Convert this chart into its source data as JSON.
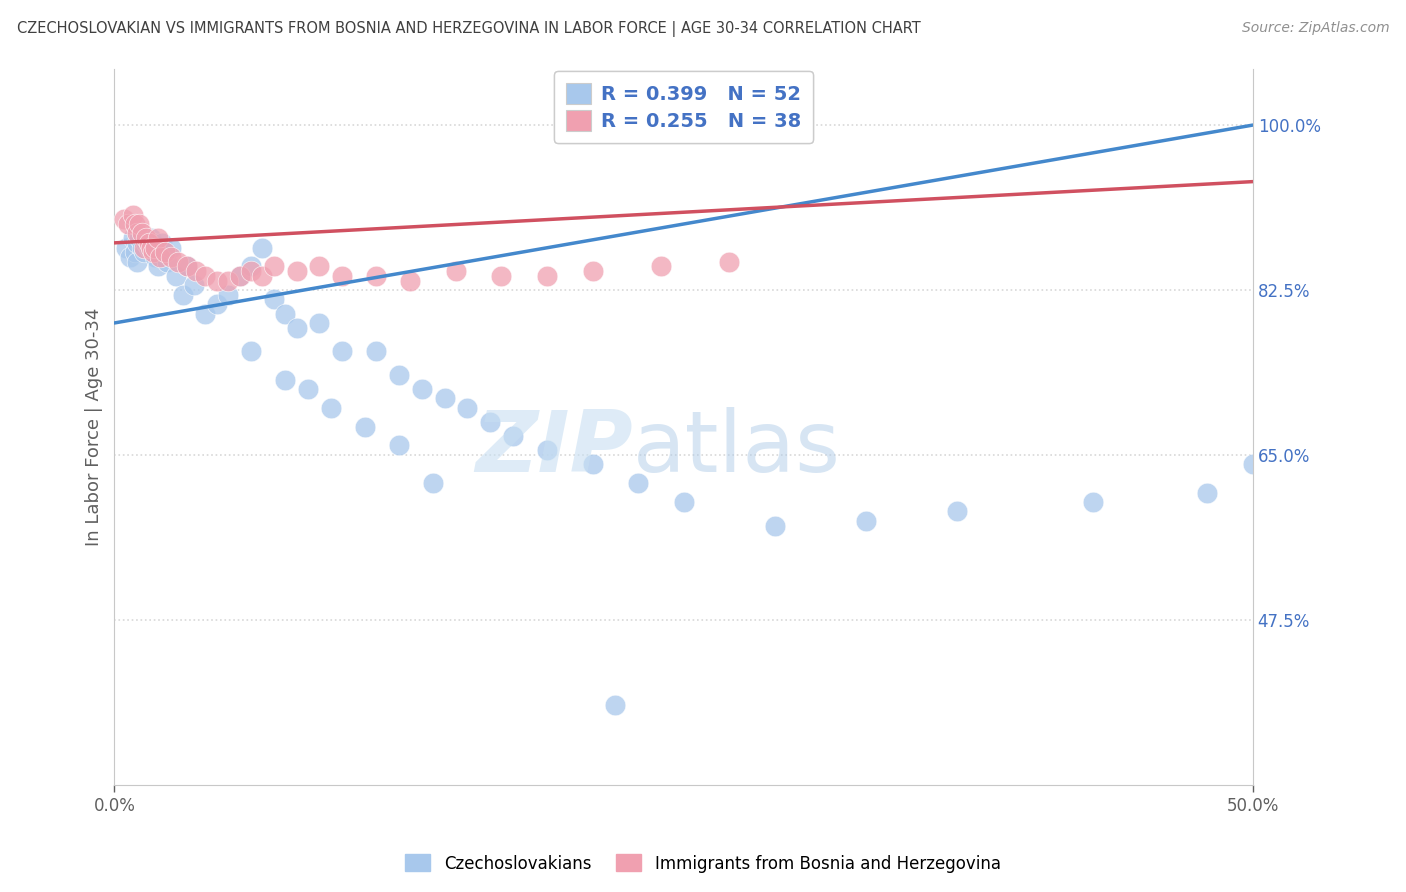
{
  "title": "CZECHOSLOVAKIAN VS IMMIGRANTS FROM BOSNIA AND HERZEGOVINA IN LABOR FORCE | AGE 30-34 CORRELATION CHART",
  "source": "Source: ZipAtlas.com",
  "ylabel_label": "In Labor Force | Age 30-34",
  "legend_label1": "Czechoslovakians",
  "legend_label2": "Immigrants from Bosnia and Herzegovina",
  "r_blue": 0.399,
  "n_blue": 52,
  "r_pink": 0.255,
  "n_pink": 38,
  "blue_color": "#A8C8EC",
  "pink_color": "#F0A0B0",
  "blue_line_color": "#4488CC",
  "pink_line_color": "#D05060",
  "legend_r_color": "#4472C4",
  "right_tick_color": "#4472C4",
  "axis_label_color": "#606060",
  "title_color": "#404040",
  "source_color": "#909090",
  "grid_color": "#D8D8D8",
  "xlim": [
    0.0,
    0.5
  ],
  "ylim": [
    0.3,
    1.06
  ],
  "yticks": [
    1.0,
    0.825,
    0.65,
    0.475
  ],
  "ytick_labels": [
    "100.0%",
    "82.5%",
    "65.0%",
    "47.5%"
  ],
  "blue_x": [
    0.005,
    0.007,
    0.008,
    0.009,
    0.01,
    0.01,
    0.011,
    0.012,
    0.013,
    0.014,
    0.015,
    0.016,
    0.017,
    0.018,
    0.019,
    0.02,
    0.021,
    0.022,
    0.023,
    0.025,
    0.027,
    0.03,
    0.032,
    0.035,
    0.04,
    0.045,
    0.05,
    0.055,
    0.06,
    0.065,
    0.07,
    0.075,
    0.08,
    0.09,
    0.1,
    0.115,
    0.125,
    0.135,
    0.145,
    0.155,
    0.165,
    0.175,
    0.19,
    0.21,
    0.23,
    0.25,
    0.29,
    0.33,
    0.37,
    0.43,
    0.48,
    0.5
  ],
  "blue_y": [
    0.87,
    0.86,
    0.88,
    0.865,
    0.855,
    0.875,
    0.88,
    0.87,
    0.865,
    0.875,
    0.87,
    0.88,
    0.875,
    0.86,
    0.85,
    0.87,
    0.875,
    0.865,
    0.855,
    0.87,
    0.84,
    0.82,
    0.85,
    0.83,
    0.8,
    0.81,
    0.82,
    0.84,
    0.85,
    0.87,
    0.815,
    0.8,
    0.785,
    0.79,
    0.76,
    0.76,
    0.735,
    0.72,
    0.71,
    0.7,
    0.685,
    0.67,
    0.655,
    0.64,
    0.62,
    0.6,
    0.575,
    0.58,
    0.59,
    0.6,
    0.61,
    0.64
  ],
  "pink_x": [
    0.004,
    0.006,
    0.008,
    0.009,
    0.01,
    0.011,
    0.012,
    0.013,
    0.014,
    0.015,
    0.016,
    0.017,
    0.018,
    0.019,
    0.02,
    0.022,
    0.025,
    0.028,
    0.032,
    0.036,
    0.04,
    0.045,
    0.05,
    0.055,
    0.06,
    0.065,
    0.07,
    0.08,
    0.09,
    0.1,
    0.115,
    0.13,
    0.15,
    0.17,
    0.19,
    0.21,
    0.24,
    0.27
  ],
  "pink_y": [
    0.9,
    0.895,
    0.905,
    0.895,
    0.885,
    0.895,
    0.885,
    0.87,
    0.88,
    0.875,
    0.87,
    0.865,
    0.87,
    0.88,
    0.86,
    0.865,
    0.86,
    0.855,
    0.85,
    0.845,
    0.84,
    0.835,
    0.835,
    0.84,
    0.845,
    0.84,
    0.85,
    0.845,
    0.85,
    0.84,
    0.84,
    0.835,
    0.845,
    0.84,
    0.84,
    0.845,
    0.85,
    0.855
  ]
}
